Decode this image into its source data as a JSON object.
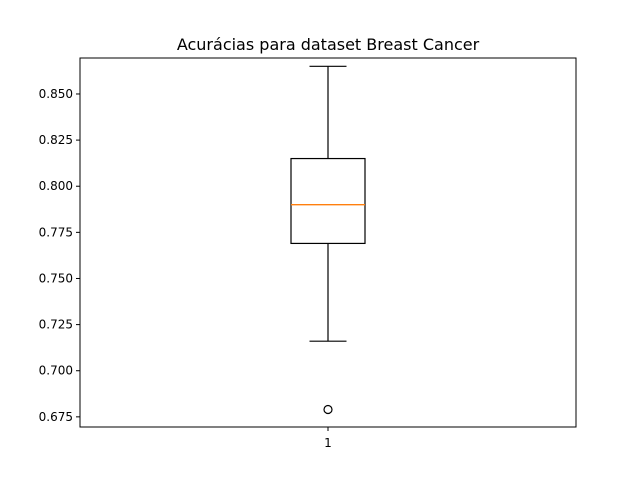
{
  "chart_data": {
    "type": "boxplot",
    "title": "Acurácias para dataset Breast Cancer",
    "xlabel": "",
    "ylabel": "",
    "ylim": [
      0.6695,
      0.8695
    ],
    "x_ticks": [
      "1"
    ],
    "y_ticks": [
      "0.675",
      "0.700",
      "0.725",
      "0.750",
      "0.775",
      "0.800",
      "0.825",
      "0.850"
    ],
    "grid": false,
    "legend": "none",
    "series": [
      {
        "category": "1",
        "whisker_low": 0.716,
        "q1": 0.769,
        "median": 0.79,
        "q3": 0.815,
        "whisker_high": 0.865,
        "outliers": [
          0.679
        ]
      }
    ],
    "colors": {
      "box": "#000000",
      "median": "#ff7f0e",
      "whisker": "#000000",
      "outlier": "#000000"
    }
  }
}
